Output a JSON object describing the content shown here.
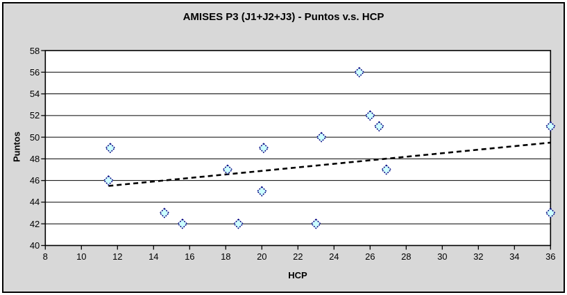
{
  "chart_data": {
    "type": "scatter",
    "title": "AMISES P3 (J1+J2+J3) - Puntos v.s. HCP",
    "xlabel": "HCP",
    "ylabel": "Puntos",
    "xlim": [
      8,
      36
    ],
    "ylim": [
      40,
      58
    ],
    "x_ticks": [
      8,
      10,
      12,
      14,
      16,
      18,
      20,
      22,
      24,
      26,
      28,
      30,
      32,
      34,
      36
    ],
    "y_ticks": [
      40,
      42,
      44,
      46,
      48,
      50,
      52,
      54,
      56,
      58
    ],
    "grid": true,
    "legend": false,
    "marker_shape": "diamond",
    "points": [
      {
        "x": 11.6,
        "y": 49
      },
      {
        "x": 11.5,
        "y": 46
      },
      {
        "x": 14.6,
        "y": 43
      },
      {
        "x": 15.6,
        "y": 42
      },
      {
        "x": 18.1,
        "y": 47
      },
      {
        "x": 18.7,
        "y": 42
      },
      {
        "x": 20.1,
        "y": 49
      },
      {
        "x": 20.0,
        "y": 45
      },
      {
        "x": 23.0,
        "y": 42
      },
      {
        "x": 23.3,
        "y": 50
      },
      {
        "x": 25.4,
        "y": 56
      },
      {
        "x": 26.0,
        "y": 52
      },
      {
        "x": 26.5,
        "y": 51
      },
      {
        "x": 26.9,
        "y": 47
      },
      {
        "x": 36.0,
        "y": 51
      },
      {
        "x": 36.0,
        "y": 43
      }
    ],
    "trendline": {
      "type": "linear",
      "style": "dashed",
      "x1": 11.5,
      "y1": 45.5,
      "x2": 36.0,
      "y2": 49.5
    },
    "colors": {
      "chart_bg": "#D8D8D8",
      "plot_bg": "#FFFFFF",
      "grid": "#000000",
      "axis": "#000000",
      "marker_fill": "#CCFFFF",
      "marker_border": "#000080",
      "trendline": "#000000",
      "frame_border": "#000000",
      "text": "#000000"
    }
  }
}
